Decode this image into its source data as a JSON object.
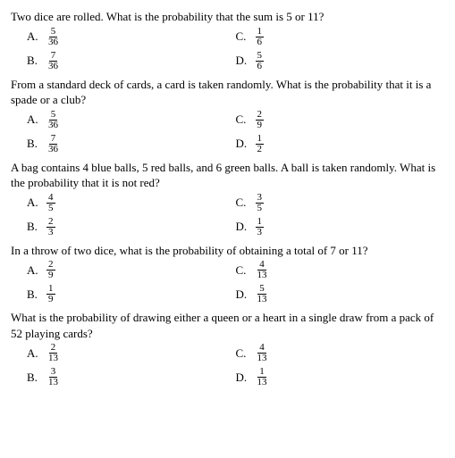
{
  "questions": [
    {
      "text": "Two dice are rolled. What is the probability that the sum is 5 or 11?",
      "options": [
        {
          "letter": "A.",
          "num": "5",
          "den": "36"
        },
        {
          "letter": "C.",
          "num": "1",
          "den": "6"
        },
        {
          "letter": "B.",
          "num": "7",
          "den": "36"
        },
        {
          "letter": "D.",
          "num": "5",
          "den": "6"
        }
      ]
    },
    {
      "text": "From a standard deck of cards, a card is taken randomly. What is the probability that it is a spade or a club?",
      "options": [
        {
          "letter": "A.",
          "num": "5",
          "den": "36"
        },
        {
          "letter": "C.",
          "num": "2",
          "den": "9"
        },
        {
          "letter": "B.",
          "num": "7",
          "den": "36"
        },
        {
          "letter": "D.",
          "num": "1",
          "den": "2"
        }
      ]
    },
    {
      "text": "A bag contains 4 blue balls, 5 red balls, and 6 green balls. A ball is taken randomly. What is the probability that it is not red?",
      "options": [
        {
          "letter": "A.",
          "num": "4",
          "den": "5"
        },
        {
          "letter": "C.",
          "num": "3",
          "den": "5"
        },
        {
          "letter": "B.",
          "num": "2",
          "den": "3"
        },
        {
          "letter": "D.",
          "num": "1",
          "den": "3"
        }
      ]
    },
    {
      "text": "In a throw of two dice, what is the probability of obtaining a total of 7 or 11?",
      "options": [
        {
          "letter": "A.",
          "num": "2",
          "den": "9"
        },
        {
          "letter": "C.",
          "num": "4",
          "den": "13"
        },
        {
          "letter": "B.",
          "num": "1",
          "den": "9"
        },
        {
          "letter": "D.",
          "num": "5",
          "den": "13"
        }
      ]
    },
    {
      "text": "What is the probability of drawing either a queen or a heart in a single draw from a pack of 52 playing cards?",
      "options": [
        {
          "letter": "A.",
          "num": "2",
          "den": "13"
        },
        {
          "letter": "C.",
          "num": "4",
          "den": "13"
        },
        {
          "letter": "B.",
          "num": "3",
          "den": "13"
        },
        {
          "letter": "D.",
          "num": "1",
          "den": "13"
        }
      ]
    }
  ],
  "colors": {
    "text": "#000000",
    "background": "#ffffff"
  },
  "typography": {
    "font_family": "Georgia, serif",
    "font_size_pt": 10,
    "fraction_font_size_pt": 8
  }
}
